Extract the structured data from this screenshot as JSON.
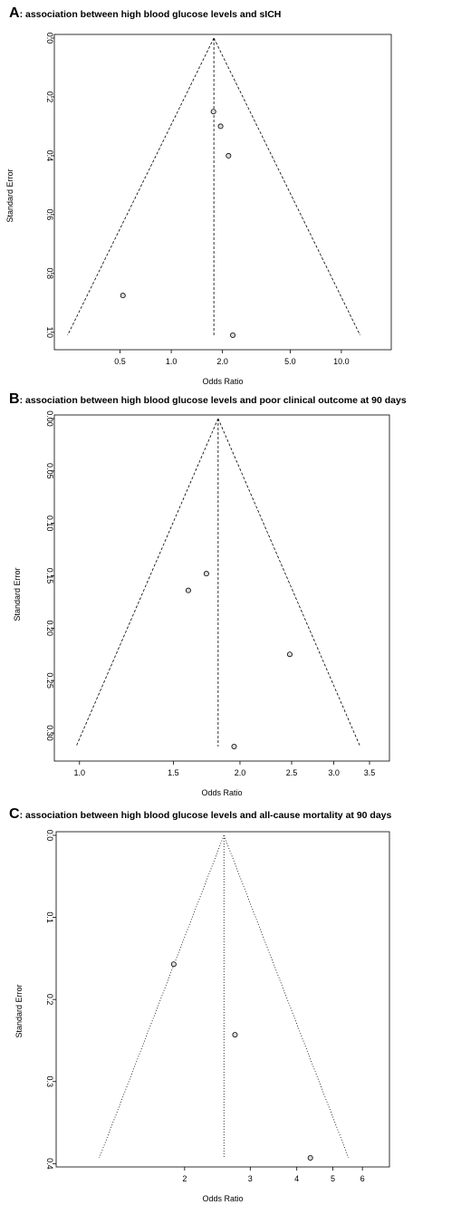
{
  "chart_data": [
    {
      "type": "scatter",
      "panel_letter": "A",
      "title": ": association between high blood glucose levels and sICH",
      "xlabel": "Odds Ratio",
      "ylabel": "Standard Error",
      "x_scale": "log",
      "y_reversed": true,
      "xlim": [
        0.25,
        15.0
      ],
      "ylim": [
        0,
        1.01
      ],
      "x_ticks": [
        0.5,
        1.0,
        2.0,
        5.0,
        10.0
      ],
      "x_tick_labels": [
        "0.5",
        "1.0",
        "2.0",
        "5.0",
        "10.0"
      ],
      "y_ticks": [
        0,
        0.2,
        0.4,
        0.6,
        0.8,
        1.0
      ],
      "y_tick_labels": [
        "0.0",
        "0.2",
        "0.4",
        "0.6",
        "0.8",
        "1.0"
      ],
      "pooled_or": 1.78,
      "funnel_style": "dashed",
      "points": [
        {
          "x": 1.77,
          "y": 0.25
        },
        {
          "x": 1.95,
          "y": 0.3
        },
        {
          "x": 2.17,
          "y": 0.4
        },
        {
          "x": 0.52,
          "y": 0.875
        },
        {
          "x": 2.3,
          "y": 1.01
        }
      ]
    },
    {
      "type": "scatter",
      "panel_letter": "B",
      "title": ": association between high blood glucose levels and poor clinical outcome at 90 days",
      "xlabel": "Odds Ratio",
      "ylabel": "Standard Error",
      "x_scale": "log",
      "y_reversed": true,
      "xlim": [
        0.97,
        3.5
      ],
      "ylim": [
        0,
        0.313
      ],
      "x_ticks": [
        1.0,
        1.5,
        2.0,
        2.5,
        3.0,
        3.5
      ],
      "x_tick_labels": [
        "1.0",
        "1.5",
        "2.0",
        "2.5",
        "3.0",
        "3.5"
      ],
      "y_ticks": [
        0,
        0.05,
        0.1,
        0.15,
        0.2,
        0.25,
        0.3
      ],
      "y_tick_labels": [
        "0.00",
        "0.05",
        "0.10",
        "0.15",
        "0.20",
        "0.25",
        "0.30"
      ],
      "pooled_or": 1.82,
      "funnel_style": "dashed",
      "points": [
        {
          "x": 1.73,
          "y": 0.148
        },
        {
          "x": 1.6,
          "y": 0.164
        },
        {
          "x": 2.48,
          "y": 0.225
        },
        {
          "x": 1.95,
          "y": 0.313
        }
      ]
    },
    {
      "type": "scatter",
      "panel_letter": "C",
      "title": ": association between high blood glucose levels and all-cause mortality at 90 days",
      "xlabel": "Odds Ratio",
      "ylabel": "Standard Error",
      "x_scale": "log",
      "y_reversed": true,
      "xlim": [
        1.0,
        6.2
      ],
      "ylim": [
        0,
        0.393
      ],
      "x_ticks": [
        2,
        3,
        4,
        5,
        6
      ],
      "x_tick_labels": [
        "2",
        "3",
        "4",
        "5",
        "6"
      ],
      "y_ticks": [
        0,
        0.1,
        0.2,
        0.3,
        0.4
      ],
      "y_tick_labels": [
        "0.0",
        "0.1",
        "0.2",
        "0.3",
        "0.4"
      ],
      "pooled_or": 2.55,
      "funnel_style": "dotted",
      "points": [
        {
          "x": 1.87,
          "y": 0.157
        },
        {
          "x": 2.73,
          "y": 0.243
        },
        {
          "x": 4.35,
          "y": 0.393
        }
      ]
    }
  ]
}
